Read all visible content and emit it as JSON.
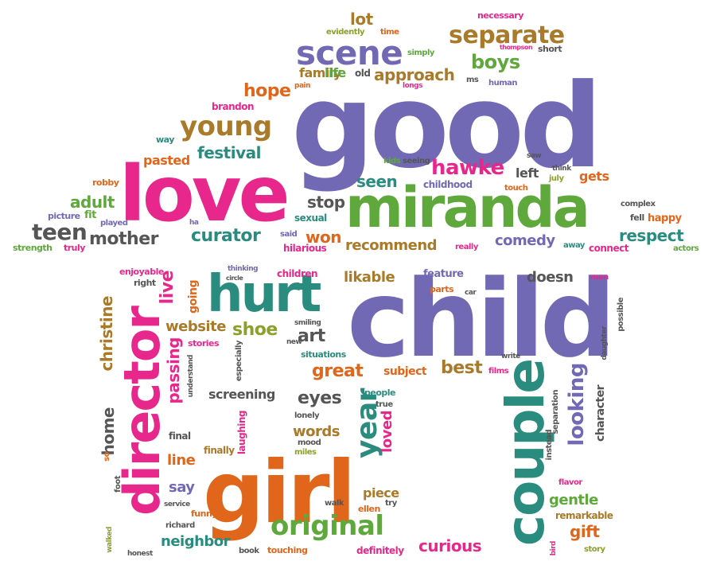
{
  "palette": {
    "purple": "#7169b3",
    "pink": "#e8278d",
    "green": "#5fa83c",
    "orange": "#e0661b",
    "brown": "#a87a2a",
    "teal": "#2a8c7f",
    "gray": "#555555",
    "olive": "#8ba12b"
  },
  "words": [
    {
      "id": "good",
      "text": "good"
    },
    {
      "id": "child",
      "text": "child"
    },
    {
      "id": "love",
      "text": "love"
    },
    {
      "id": "miranda",
      "text": "miranda"
    },
    {
      "id": "girl",
      "text": "girl"
    },
    {
      "id": "director",
      "text": "director"
    },
    {
      "id": "couple",
      "text": "couple"
    },
    {
      "id": "hurt",
      "text": "hurt"
    },
    {
      "id": "scene",
      "text": "scene"
    },
    {
      "id": "young",
      "text": "young"
    },
    {
      "id": "separate",
      "text": "separate"
    },
    {
      "id": "original",
      "text": "original"
    },
    {
      "id": "boys",
      "text": "boys"
    },
    {
      "id": "hawke",
      "text": "hawke"
    },
    {
      "id": "teen",
      "text": "teen"
    },
    {
      "id": "mother",
      "text": "mother"
    },
    {
      "id": "curator",
      "text": "curator"
    },
    {
      "id": "respect",
      "text": "respect"
    },
    {
      "id": "great",
      "text": "great"
    },
    {
      "id": "year",
      "text": "year"
    },
    {
      "id": "looking",
      "text": "looking"
    },
    {
      "id": "approach",
      "text": "approach"
    },
    {
      "id": "hope",
      "text": "hope"
    },
    {
      "id": "festival",
      "text": "festival"
    },
    {
      "id": "adult",
      "text": "adult"
    },
    {
      "id": "stop",
      "text": "stop"
    },
    {
      "id": "won",
      "text": "won"
    },
    {
      "id": "comedy",
      "text": "comedy"
    },
    {
      "id": "recommend",
      "text": "recommend"
    },
    {
      "id": "seen",
      "text": "seen"
    },
    {
      "id": "likable",
      "text": "likable"
    },
    {
      "id": "shoe",
      "text": "shoe"
    },
    {
      "id": "art",
      "text": "art"
    },
    {
      "id": "best",
      "text": "best"
    },
    {
      "id": "eyes",
      "text": "eyes"
    },
    {
      "id": "words",
      "text": "words"
    },
    {
      "id": "loved",
      "text": "loved"
    },
    {
      "id": "line",
      "text": "line"
    },
    {
      "id": "say",
      "text": "say"
    },
    {
      "id": "neighbor",
      "text": "neighbor"
    },
    {
      "id": "curious",
      "text": "curious"
    },
    {
      "id": "gentle",
      "text": "gentle"
    },
    {
      "id": "gift",
      "text": "gift"
    },
    {
      "id": "passing",
      "text": "passing"
    },
    {
      "id": "live",
      "text": "live"
    },
    {
      "id": "christine",
      "text": "christine"
    },
    {
      "id": "home",
      "text": "home"
    },
    {
      "id": "website",
      "text": "website"
    },
    {
      "id": "screening",
      "text": "screening"
    },
    {
      "id": "subject",
      "text": "subject"
    },
    {
      "id": "piece",
      "text": "piece"
    },
    {
      "id": "doesn",
      "text": "doesn"
    },
    {
      "id": "family",
      "text": "family"
    },
    {
      "id": "life",
      "text": "life"
    },
    {
      "id": "lot",
      "text": "lot"
    },
    {
      "id": "pasted",
      "text": "pasted"
    },
    {
      "id": "left",
      "text": "left"
    },
    {
      "id": "gets",
      "text": "gets"
    },
    {
      "id": "childhood",
      "text": "childhood"
    },
    {
      "id": "feature",
      "text": "feature"
    },
    {
      "id": "children",
      "text": "children"
    },
    {
      "id": "enjoyable",
      "text": "enjoyable"
    },
    {
      "id": "funny",
      "text": "funny"
    },
    {
      "id": "definitely",
      "text": "definitely"
    },
    {
      "id": "touching",
      "text": "touching"
    },
    {
      "id": "character",
      "text": "character"
    },
    {
      "id": "remarkable",
      "text": "remarkable"
    },
    {
      "id": "instead",
      "text": "instead"
    },
    {
      "id": "people",
      "text": "people"
    },
    {
      "id": "finally",
      "text": "finally"
    },
    {
      "id": "situations",
      "text": "situations"
    },
    {
      "id": "stories",
      "text": "stories"
    },
    {
      "id": "going",
      "text": "going"
    },
    {
      "id": "laughing",
      "text": "laughing"
    },
    {
      "id": "especially",
      "text": "especially"
    },
    {
      "id": "understand",
      "text": "understand"
    },
    {
      "id": "brandon",
      "text": "brandon"
    },
    {
      "id": "way",
      "text": "way"
    },
    {
      "id": "robby",
      "text": "robby"
    },
    {
      "id": "picture",
      "text": "picture"
    },
    {
      "id": "fit",
      "text": "fit"
    },
    {
      "id": "played",
      "text": "played"
    },
    {
      "id": "strength",
      "text": "strength"
    },
    {
      "id": "truly",
      "text": "truly"
    },
    {
      "id": "sexual",
      "text": "sexual"
    },
    {
      "id": "hilarious",
      "text": "hilarious"
    },
    {
      "id": "said",
      "text": "said"
    },
    {
      "id": "ha",
      "text": "ha"
    },
    {
      "id": "really",
      "text": "really"
    },
    {
      "id": "away",
      "text": "away"
    },
    {
      "id": "connect",
      "text": "connect"
    },
    {
      "id": "fell",
      "text": "fell"
    },
    {
      "id": "happy",
      "text": "happy"
    },
    {
      "id": "actors",
      "text": "actors"
    },
    {
      "id": "complex",
      "text": "complex"
    },
    {
      "id": "july",
      "text": "july"
    },
    {
      "id": "think",
      "text": "think"
    },
    {
      "id": "touch",
      "text": "touch"
    },
    {
      "id": "kids",
      "text": "kids"
    },
    {
      "id": "seeing",
      "text": "seeing"
    },
    {
      "id": "saw",
      "text": "saw"
    },
    {
      "id": "evidently",
      "text": "evidently"
    },
    {
      "id": "time",
      "text": "time"
    },
    {
      "id": "necessary",
      "text": "necessary"
    },
    {
      "id": "happy2",
      "text": "happy"
    },
    {
      "id": "thompson",
      "text": "thompson"
    },
    {
      "id": "short",
      "text": "short"
    },
    {
      "id": "simply",
      "text": "simply"
    },
    {
      "id": "old",
      "text": "old"
    },
    {
      "id": "longs",
      "text": "longs"
    },
    {
      "id": "ms",
      "text": "ms"
    },
    {
      "id": "human",
      "text": "human"
    },
    {
      "id": "pain",
      "text": "pain"
    },
    {
      "id": "thinking",
      "text": "thinking"
    },
    {
      "id": "circle",
      "text": "circle"
    },
    {
      "id": "right",
      "text": "right"
    },
    {
      "id": "parts",
      "text": "parts"
    },
    {
      "id": "car",
      "text": "car"
    },
    {
      "id": "man",
      "text": "man"
    },
    {
      "id": "possible",
      "text": "possible"
    },
    {
      "id": "daughter",
      "text": "daughter"
    },
    {
      "id": "write",
      "text": "write"
    },
    {
      "id": "films",
      "text": "films"
    },
    {
      "id": "separation",
      "text": "separation"
    },
    {
      "id": "smiling",
      "text": "smiling"
    },
    {
      "id": "new",
      "text": "new"
    },
    {
      "id": "true",
      "text": "true"
    },
    {
      "id": "lonely",
      "text": "lonely"
    },
    {
      "id": "mood",
      "text": "mood"
    },
    {
      "id": "miles",
      "text": "miles"
    },
    {
      "id": "final",
      "text": "final"
    },
    {
      "id": "so",
      "text": "so"
    },
    {
      "id": "foot",
      "text": "foot"
    },
    {
      "id": "service",
      "text": "service"
    },
    {
      "id": "walk",
      "text": "walk"
    },
    {
      "id": "ellen",
      "text": "ellen"
    },
    {
      "id": "try",
      "text": "try"
    },
    {
      "id": "richard",
      "text": "richard"
    },
    {
      "id": "walked",
      "text": "walked"
    },
    {
      "id": "honest",
      "text": "honest"
    },
    {
      "id": "book",
      "text": "book"
    },
    {
      "id": "flavor",
      "text": "flavor"
    },
    {
      "id": "bird",
      "text": "bird"
    },
    {
      "id": "story",
      "text": "story"
    }
  ]
}
